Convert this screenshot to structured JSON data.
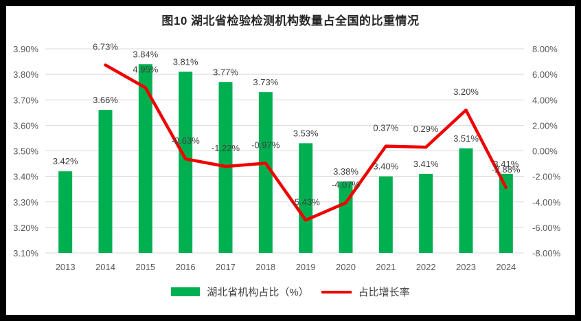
{
  "chart_data": {
    "type": "bar",
    "title": "图10 湖北省检验检测机构数量占全国的比重情况",
    "categories": [
      "2013",
      "2014",
      "2015",
      "2016",
      "2017",
      "2018",
      "2019",
      "2020",
      "2021",
      "2022",
      "2023",
      "2024"
    ],
    "series": [
      {
        "name": "湖北省机构占比（%）",
        "type": "bar",
        "axis": "left",
        "color": "#00B050",
        "values": [
          3.42,
          3.66,
          3.84,
          3.81,
          3.77,
          3.73,
          3.53,
          3.38,
          3.4,
          3.41,
          3.51,
          3.41
        ]
      },
      {
        "name": "占比增长率",
        "type": "line",
        "axis": "right",
        "color": "#F00000",
        "values": [
          null,
          6.73,
          4.95,
          -0.63,
          -1.22,
          -0.97,
          -5.43,
          -4.07,
          0.37,
          0.29,
          3.2,
          -2.88
        ]
      }
    ],
    "left_axis": {
      "min": 3.1,
      "max": 3.9,
      "step": 0.1,
      "tick_format": "0.00%"
    },
    "right_axis": {
      "min": -8.0,
      "max": 8.0,
      "step": 2.0,
      "tick_format": "0.00%"
    },
    "grid": true,
    "gridline_color": "#D9D9D9",
    "legend_position": "bottom",
    "data_labels": true
  }
}
